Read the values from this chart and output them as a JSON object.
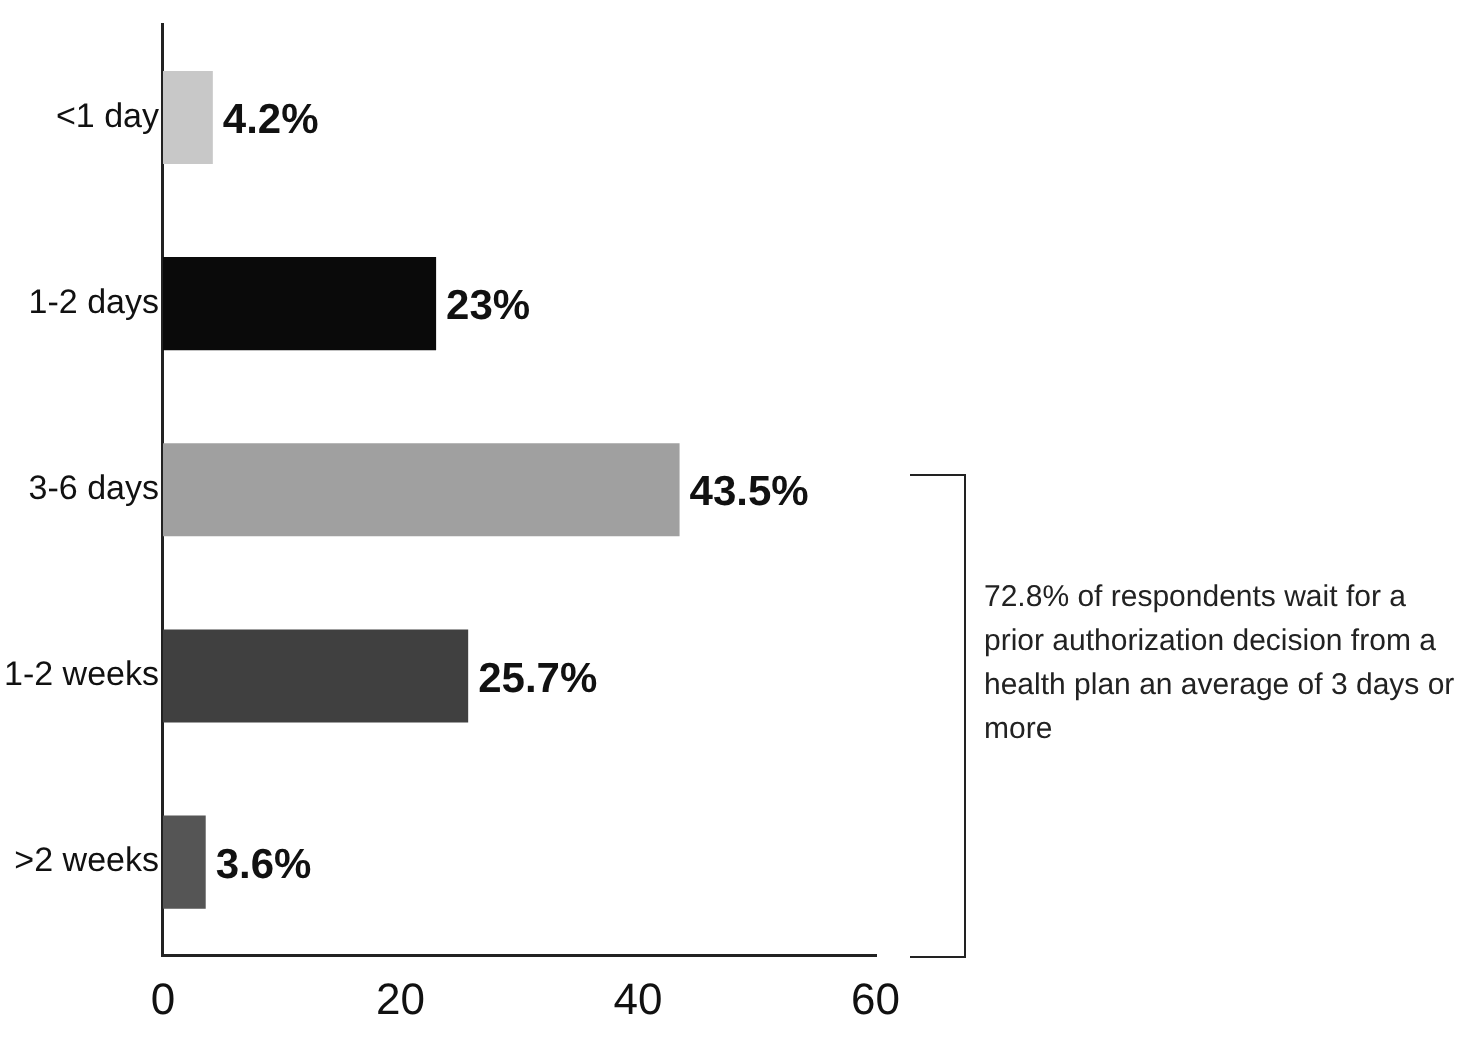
{
  "chart_data": {
    "type": "bar",
    "orientation": "horizontal",
    "categories": [
      "<1 day",
      "1-2 days",
      "3-6 days",
      "1-2 weeks",
      ">2 weeks"
    ],
    "values": [
      4.2,
      23,
      43.5,
      25.7,
      3.6
    ],
    "colors": [
      "#c8c8c8",
      "#0a0a0a",
      "#a0a0a0",
      "#404040",
      "#555555"
    ],
    "value_labels": [
      "4.2%",
      "23%",
      "43.5%",
      "25.7%",
      "3.6%"
    ],
    "xlim": [
      0,
      60
    ],
    "xticks": [
      0,
      20,
      40,
      60
    ],
    "grid": false,
    "annotations": [
      "72.8% of respondents wait for a prior authorization decision from a health plan an average of 3 days or more"
    ]
  }
}
